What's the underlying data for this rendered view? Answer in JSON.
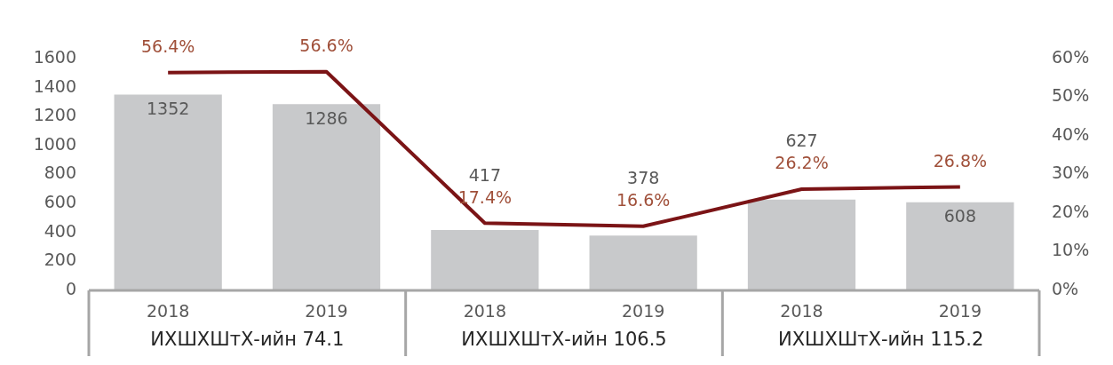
{
  "chart_data": {
    "type": "bar",
    "categories": [
      "2018",
      "2019",
      "2018",
      "2019",
      "2018",
      "2019"
    ],
    "series": [
      {
        "color": "#c8c9cb",
        "values": [
          1352,
          1286,
          417,
          378,
          627,
          608
        ],
        "value_labels": [
          "1352",
          "1286",
          "417",
          "378",
          "627",
          "608"
        ]
      },
      {
        "type": "line",
        "axis": "y2",
        "color": "#7b1416",
        "values": [
          56.4,
          56.6,
          17.4,
          16.6,
          26.2,
          26.8
        ],
        "value_labels": [
          "56.4%",
          "56.6%",
          "17.4%",
          "16.6%",
          "26.2%",
          "26.8%"
        ]
      }
    ],
    "ylim": [
      0,
      1600
    ],
    "yticks": [
      0,
      200,
      400,
      600,
      800,
      1000,
      1200,
      1400,
      1600
    ],
    "y2lim": [
      0,
      60
    ],
    "y2ticks": [
      {
        "value": 0,
        "label": "0%"
      },
      {
        "value": 10,
        "label": "10%"
      },
      {
        "value": 20,
        "label": "20%"
      },
      {
        "value": 30,
        "label": "30%"
      },
      {
        "value": 40,
        "label": "40%"
      },
      {
        "value": 50,
        "label": "50%"
      },
      {
        "value": 60,
        "label": "60%"
      }
    ],
    "annotations": [
      "ИХШХШтХ-ийн 74.1",
      "ИХШХШтХ-ийн 106.5",
      "ИХШХШтХ-ийн 115.2"
    ],
    "grid": false,
    "legend": false,
    "marker": "none",
    "line_style": "solid"
  }
}
